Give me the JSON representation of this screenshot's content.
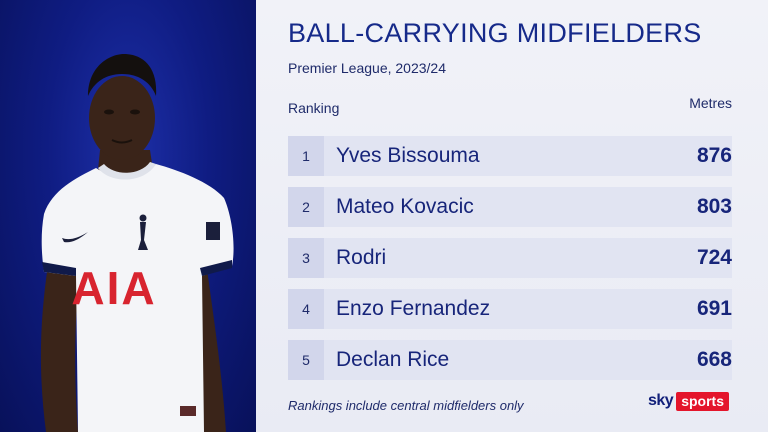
{
  "header": {
    "title": "BALL-CARRYING MIDFIELDERS",
    "subtitle": "Premier League, 2023/24"
  },
  "table": {
    "col_ranking": "Ranking",
    "col_metres": "Metres",
    "rows": [
      {
        "rank": "1",
        "name": "Yves Bissouma",
        "value": "876"
      },
      {
        "rank": "2",
        "name": "Mateo Kovacic",
        "value": "803"
      },
      {
        "rank": "3",
        "name": "Rodri",
        "value": "724"
      },
      {
        "rank": "4",
        "name": "Enzo Fernandez",
        "value": "691"
      },
      {
        "rank": "5",
        "name": "Declan Rice",
        "value": "668"
      }
    ]
  },
  "footnote": "Rankings include central midfielders only",
  "branding": {
    "sky": "sky",
    "sports": "sports",
    "accent": "#e4152b"
  },
  "shirt": {
    "sponsor": "AIA"
  },
  "colors": {
    "panel_bg": "#0f1c82",
    "title": "#162a8a",
    "row_bg": "#e1e4f2",
    "rank_bg": "#d2d6eb"
  }
}
